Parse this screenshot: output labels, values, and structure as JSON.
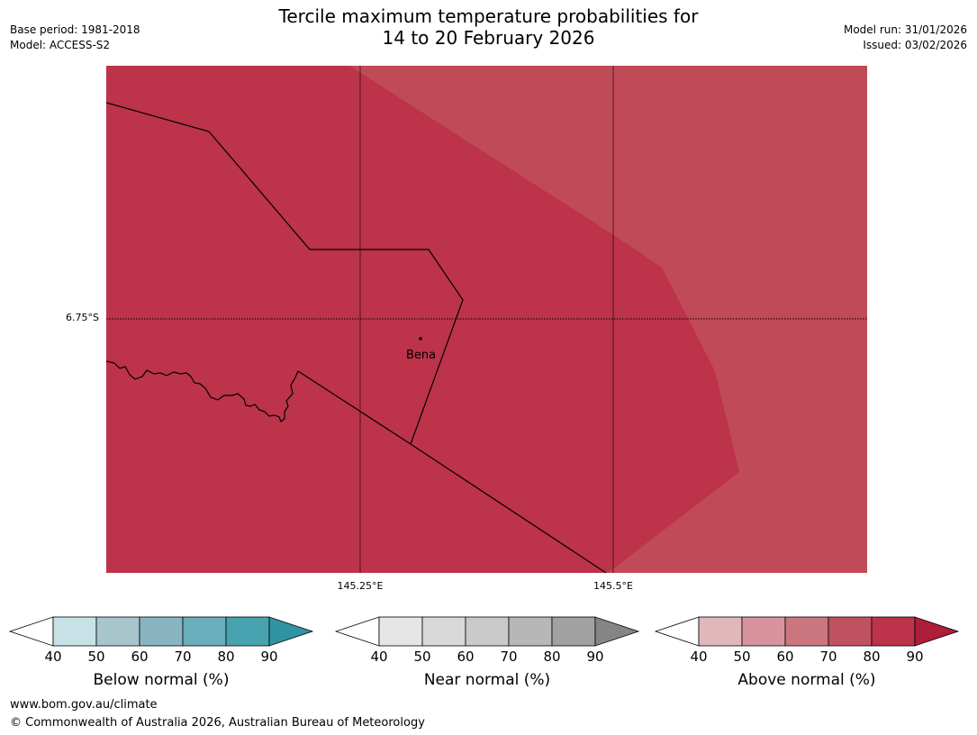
{
  "header": {
    "title_line1": "Tercile maximum temperature probabilities for",
    "title_line2": "14 to 20 February 2026",
    "base_period": "Base period: 1981-2018",
    "model": "Model: ACCESS-S2",
    "model_run": "Model run: 31/01/2026",
    "issued": "Issued: 03/02/2026"
  },
  "map": {
    "lat_label": "6.75°S",
    "lon_labels": [
      "145.25°E",
      "145.5°E"
    ],
    "place": "Bena",
    "region_colors": {
      "primary": "#bc334a",
      "secondary": "#c04a56"
    }
  },
  "colorbars": [
    {
      "label": "Below normal (%)",
      "ticks": [
        "40",
        "50",
        "60",
        "70",
        "80",
        "90"
      ],
      "colors": [
        "#ffffff",
        "#c8e1e6",
        "#a7c5cb",
        "#89b5c1",
        "#6baebc",
        "#48a2b0",
        "#2f93a2"
      ]
    },
    {
      "label": "Near normal (%)",
      "ticks": [
        "40",
        "50",
        "60",
        "70",
        "80",
        "90"
      ],
      "colors": [
        "#ffffff",
        "#e6e6e6",
        "#d9d9d9",
        "#cacaca",
        "#b7b7b7",
        "#a1a1a1",
        "#858585"
      ]
    },
    {
      "label": "Above normal (%)",
      "ticks": [
        "40",
        "50",
        "60",
        "70",
        "80",
        "90"
      ],
      "colors": [
        "#ffffff",
        "#e1b7bc",
        "#d7949c",
        "#cb767e",
        "#c0525f",
        "#bc334a",
        "#ac1e39"
      ]
    }
  ],
  "footer": {
    "url": "www.bom.gov.au/climate",
    "copyright": "© Commonwealth of Australia 2026, Australian Bureau of Meteorology"
  }
}
